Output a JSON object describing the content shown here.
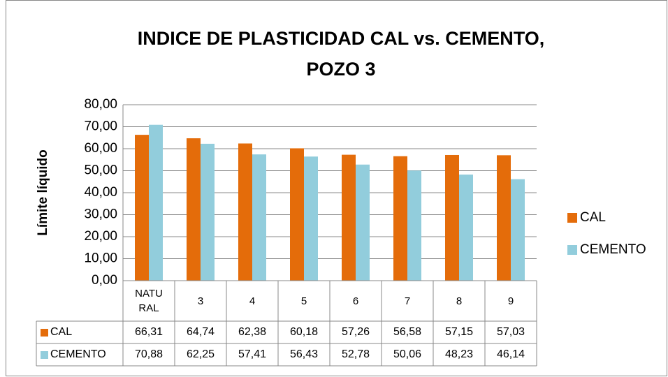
{
  "chart_data": {
    "type": "bar",
    "title": [
      "INDICE DE PLASTICIDAD CAL vs. CEMENTO,",
      "POZO 3"
    ],
    "y_label": "Límite líquido",
    "categories": [
      "NATURAL",
      "3",
      "4",
      "5",
      "6",
      "7",
      "8",
      "9"
    ],
    "series": [
      {
        "name": "CAL",
        "color": "#e46c0a",
        "values": [
          66.31,
          64.74,
          62.38,
          60.18,
          57.26,
          56.58,
          57.15,
          57.03
        ],
        "value_labels": [
          "66,31",
          "64,74",
          "62,38",
          "60,18",
          "57,26",
          "56,58",
          "57,15",
          "57,03"
        ]
      },
      {
        "name": "CEMENTO",
        "color": "#92cddc",
        "values": [
          70.88,
          62.25,
          57.41,
          56.43,
          52.78,
          50.06,
          48.23,
          46.14
        ],
        "value_labels": [
          "70,88",
          "62,25",
          "57,41",
          "56,43",
          "52,78",
          "50,06",
          "48,23",
          "46,14"
        ]
      }
    ],
    "ylim": [
      0,
      80
    ],
    "yticks": [
      {
        "value": 0,
        "label": "0,00"
      },
      {
        "value": 10,
        "label": "10,00"
      },
      {
        "value": 20,
        "label": "20,00"
      },
      {
        "value": 30,
        "label": "30,00"
      },
      {
        "value": 40,
        "label": "40,00"
      },
      {
        "value": 50,
        "label": "50,00"
      },
      {
        "value": 60,
        "label": "60,00"
      },
      {
        "value": 70,
        "label": "70,00"
      },
      {
        "value": 80,
        "label": "80,00"
      }
    ],
    "grid": true,
    "legend": "right"
  }
}
